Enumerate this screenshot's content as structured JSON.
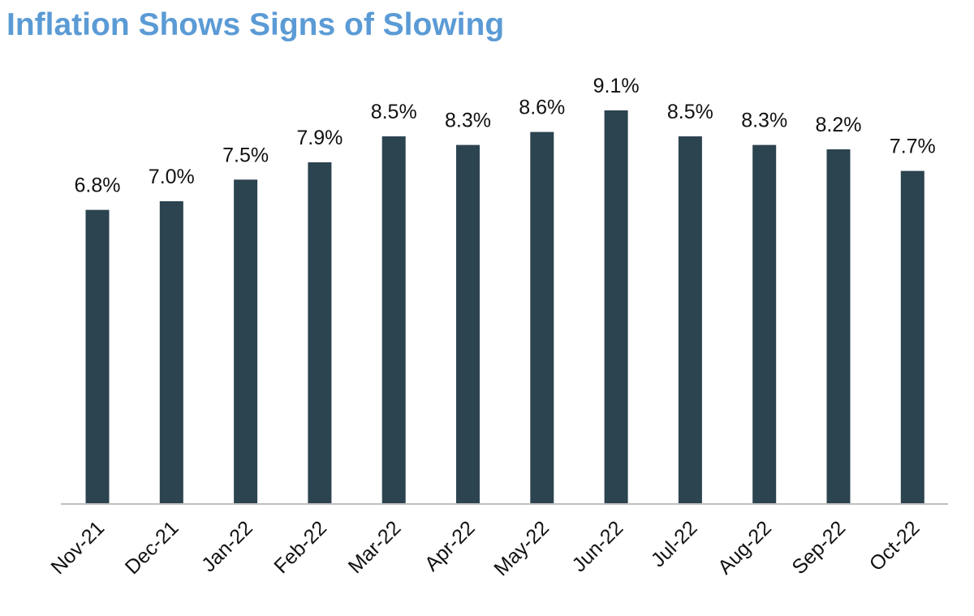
{
  "title": "Inflation Shows Signs of Slowing",
  "colors": {
    "title": "#5b9bd5",
    "bar": "#2c4350",
    "axis": "#bfbfbf",
    "text": "#111111"
  },
  "chart_data": {
    "type": "bar",
    "title": "Inflation Shows Signs of Slowing",
    "categories": [
      "Nov-21",
      "Dec-21",
      "Jan-22",
      "Feb-22",
      "Mar-22",
      "Apr-22",
      "May-22",
      "Jun-22",
      "Jul-22",
      "Aug-22",
      "Sep-22",
      "Oct-22"
    ],
    "values": [
      6.8,
      7.0,
      7.5,
      7.9,
      8.5,
      8.3,
      8.6,
      9.1,
      8.5,
      8.3,
      8.2,
      7.7
    ],
    "data_labels": [
      "6.8%",
      "7.0%",
      "7.5%",
      "7.9%",
      "8.5%",
      "8.3%",
      "8.6%",
      "9.1%",
      "8.5%",
      "8.3%",
      "8.2%",
      "7.7%"
    ],
    "xlabel": "",
    "ylabel": "",
    "ylim": [
      0,
      9.1
    ],
    "grid": false,
    "legend": "none"
  }
}
